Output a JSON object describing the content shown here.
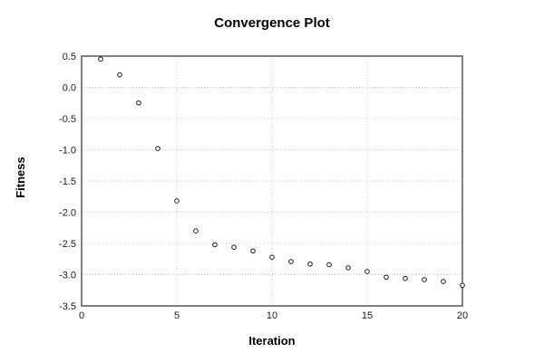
{
  "chart_data": {
    "type": "scatter",
    "title": "Convergence Plot",
    "xlabel": "Iteration",
    "ylabel": "Fitness",
    "xlim": [
      0,
      20
    ],
    "ylim": [
      -3.5,
      0.5
    ],
    "xticks": [
      0,
      5,
      10,
      15,
      20
    ],
    "xtick_labels": [
      "0",
      "5",
      "10",
      "15",
      "20"
    ],
    "yticks": [
      0.5,
      0.0,
      -0.5,
      -1.0,
      -1.5,
      -2.0,
      -2.5,
      -3.0,
      -3.5
    ],
    "ytick_labels": [
      "0.5",
      "0.0",
      "-0.5",
      "-1.0",
      "-1.5",
      "-2.0",
      "-2.5",
      "-3.0",
      "-3.5"
    ],
    "grid": "dotted",
    "grid_color": "#c9c9c9",
    "axis_color": "#000000",
    "marker": "open-circle",
    "marker_color": "#1a1a1a",
    "marker_fill": "#ffffff",
    "x": [
      1,
      2,
      3,
      4,
      5,
      6,
      7,
      8,
      9,
      10,
      11,
      12,
      13,
      14,
      15,
      16,
      17,
      18,
      19,
      20
    ],
    "y": [
      0.45,
      0.2,
      -0.25,
      -0.98,
      -1.82,
      -2.3,
      -2.52,
      -2.56,
      -2.62,
      -2.72,
      -2.79,
      -2.83,
      -2.84,
      -2.89,
      -2.95,
      -3.04,
      -3.06,
      -3.08,
      -3.11,
      -3.17
    ]
  }
}
